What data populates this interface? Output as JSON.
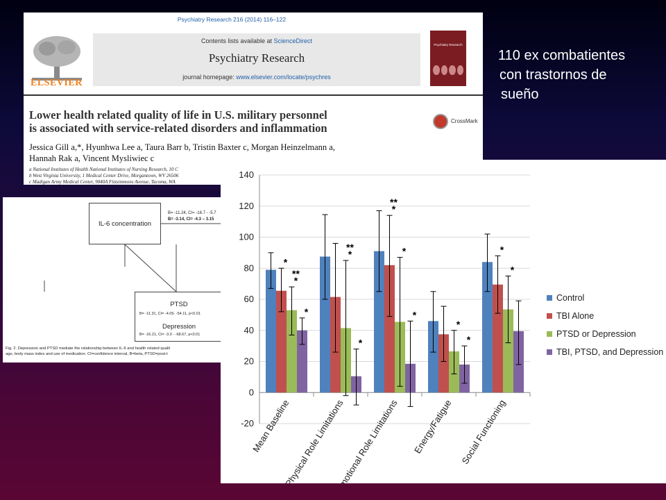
{
  "paper": {
    "journal_ref": "Psychiatry Research 216 (2014) 116–122",
    "contents_prefix": "Contents lists available at ",
    "contents_link": "ScienceDirect",
    "journal_name": "Psychiatry Research",
    "homepage_prefix": "journal homepage: ",
    "homepage_link": "www.elsevier.com/locate/psychres",
    "publisher": "ELSEVIER",
    "cover_title": "Psychiatry Research",
    "crossmark": "CrossMark",
    "title_line1": "Lower health related quality of life in U.S. military personnel",
    "title_line2": "is associated with service-related disorders and inflammation",
    "authors_line1": "Jessica Gill a,*, Hyunhwa Lee a, Taura Barr b, Tristin Baxter c, Morgan Heinzelmann a,",
    "authors_line2": "Hannah Rak a, Vincent Mysliwiec c",
    "affil1": "a National Institutes of Health National Institutes of Nursing Research, 10 C",
    "affil2": "b West Virginia University, 1 Medical Center Drive, Morgantown, WV 26506",
    "affil3": "c Madigan Army Medical Center, 9040A Fitzsimmons Avenue, Tacoma, WA"
  },
  "figure2": {
    "il6_label": "IL-6 concentration",
    "stats_top_1": "B= -11.24, CI= -16.7 - -5.7",
    "stats_top_2": "B= -3.14, CI= -4.3 – 3.15",
    "ptsd_label": "PTSD",
    "ptsd_stats": "B= -11.31, CI= -4.05- -54.11, p<0.01",
    "dep_label": "Depression",
    "dep_stats": "B= -16.21, CI= -3.0 - -68.67, p<0.01",
    "caption_1": "Fig. 2. Depression and PTSD mediate the relationship between IL-6 and health related qualit",
    "caption_2": "age, body mass index and use of medication. CI=confidence interval, B=beta, PTSD=post-t"
  },
  "side_text": {
    "line1": "110 ex combatientes",
    "line2": "con trastornos de",
    "line3": "sueño"
  },
  "colors": {
    "control": "#4f81bd",
    "tbi_alone": "#c0504d",
    "ptsd_or_depression": "#9bbb59",
    "tbi_ptsd_depression": "#8064a2"
  },
  "chart_data": {
    "type": "bar",
    "categories": [
      "Mean Baseline",
      "Physical Role Limitations",
      "Emotional Role Limitations",
      "Energy/Fatigue",
      "Social Functioning"
    ],
    "ylim": [
      -20,
      140
    ],
    "yticks": [
      -20,
      0,
      20,
      40,
      60,
      80,
      100,
      120,
      140
    ],
    "grid": true,
    "legend_position": "right",
    "series": [
      {
        "name": "Control",
        "color": "#4f81bd",
        "values": [
          79,
          87.5,
          91,
          46,
          84
        ],
        "err_low": [
          67,
          60,
          65,
          26,
          65
        ],
        "err_high": [
          90,
          114.5,
          117,
          65,
          102
        ],
        "annot": [
          "",
          "",
          "",
          "",
          ""
        ]
      },
      {
        "name": "TBI Alone",
        "color": "#c0504d",
        "values": [
          65.5,
          61.5,
          82,
          37.5,
          69.5
        ],
        "err_low": [
          52,
          26,
          49,
          20,
          51
        ],
        "err_high": [
          80,
          96,
          114,
          55.5,
          88
        ],
        "annot": [
          "*",
          "",
          "**\n*",
          "",
          "*"
        ]
      },
      {
        "name": "PTSD or Depression",
        "color": "#9bbb59",
        "values": [
          53,
          41.5,
          45.5,
          26.5,
          53.5
        ],
        "err_low": [
          37,
          -2,
          4,
          12,
          32
        ],
        "err_high": [
          68,
          85,
          87,
          40,
          75
        ],
        "annot": [
          "**\n*",
          "**\n*",
          "*",
          "*",
          "*"
        ]
      },
      {
        "name": "TBI, PTSD, and Depression",
        "color": "#8064a2",
        "values": [
          40,
          10.5,
          18.5,
          18,
          39.5
        ],
        "err_low": [
          31,
          -8,
          -9,
          6,
          18
        ],
        "err_high": [
          48,
          28,
          46,
          30,
          59
        ],
        "annot": [
          "*",
          "*",
          "*",
          "*",
          ""
        ]
      }
    ]
  }
}
